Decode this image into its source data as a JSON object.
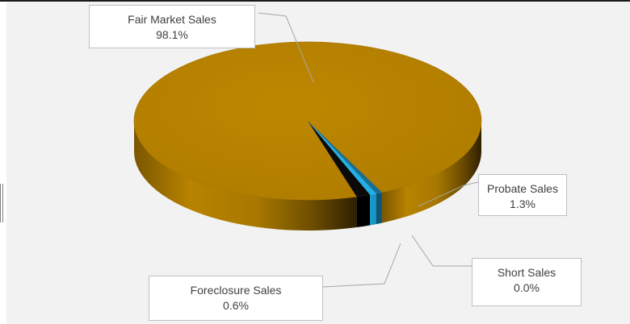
{
  "chart_data": {
    "type": "pie",
    "title": "",
    "slices": [
      {
        "label": "Fair Market Sales",
        "value": 98.1,
        "display": "98.1%",
        "color": "#b88300"
      },
      {
        "label": "Probate Sales",
        "value": 1.3,
        "display": "1.3%",
        "color": "#0a0a0a"
      },
      {
        "label": "Short Sales",
        "value": 0.0,
        "display": "0.0%",
        "color": "#1eb0e6"
      },
      {
        "label": "Foreclosure Sales",
        "value": 0.6,
        "display": "0.6%",
        "color": "#1a6f92"
      }
    ],
    "legend": "none",
    "data_labels": "callout"
  }
}
